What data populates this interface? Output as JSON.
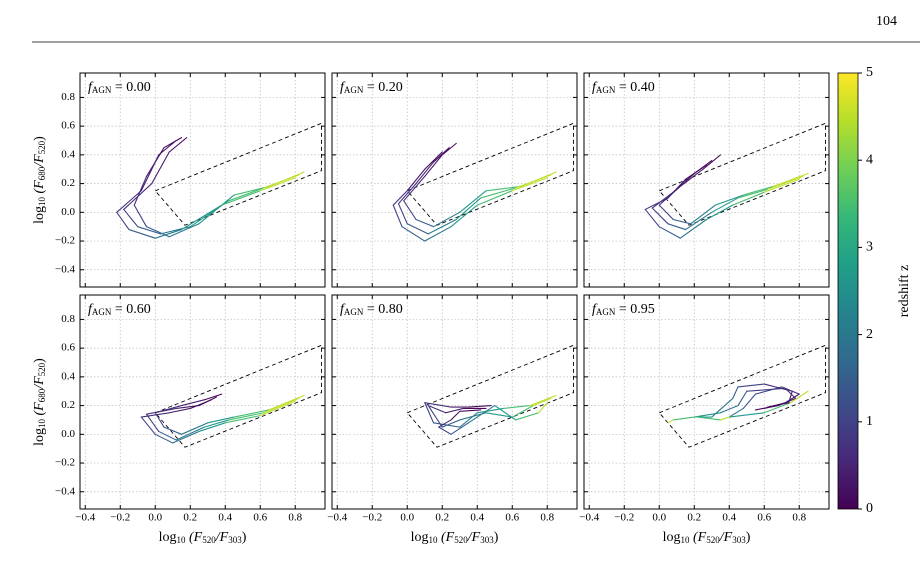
{
  "page_number": "104",
  "axes": {
    "xlabel": [
      "log",
      "10",
      " (F",
      "520",
      "/F",
      "303",
      ")"
    ],
    "ylabel": [
      "log",
      "10",
      " (F",
      "680",
      "/F",
      "520",
      ")"
    ],
    "xlim": [
      -0.43,
      0.97
    ],
    "ylim": [
      -0.52,
      0.97
    ],
    "xticks": [
      {
        "value": -0.4,
        "label": "−0.4"
      },
      {
        "value": -0.2,
        "label": "−0.2"
      },
      {
        "value": 0,
        "label": "0.0"
      },
      0.2,
      0.4,
      0.6,
      0.8
    ],
    "yticks": [
      {
        "value": -0.4,
        "label": "−0.4"
      },
      {
        "value": -0.2,
        "label": "−0.2"
      },
      {
        "value": 0,
        "label": "0.0"
      },
      0.2,
      0.4,
      0.6,
      0.8
    ],
    "grid": true,
    "region": {
      "x": [
        0,
        0.95,
        0.95,
        0.17,
        0
      ],
      "y": [
        0.15,
        0.62,
        0.29,
        -0.09,
        0.15
      ]
    },
    "z": [
      0,
      0.2,
      0.5,
      0.8,
      1.2,
      1.7,
      2.3,
      3,
      4,
      5
    ],
    "colorbar": {
      "label": "redshift z",
      "lim": [
        0,
        5
      ],
      "ticks": [
        0,
        1,
        2,
        3,
        4,
        5
      ],
      "colors": [
        "#440154",
        "#482878",
        "#3e4989",
        "#31688e",
        "#26828e",
        "#1f9e89",
        "#35b779",
        "#6ece58",
        "#b5de2b",
        "#fde725"
      ]
    }
  },
  "chart_data": [
    {
      "type": "line",
      "label": "f",
      "label_sub": "AGN",
      "label_value": " = 0.00",
      "series": [
        {
          "x": [
            0.15,
            0.05,
            -0.05,
            -0.12,
            -0.05,
            0.08,
            0.25,
            0.45,
            0.65,
            0.85
          ],
          "y": [
            0.52,
            0.45,
            0.25,
            0.05,
            -0.1,
            -0.17,
            -0.08,
            0.12,
            0.18,
            0.28
          ]
        },
        {
          "x": [
            0.18,
            0.08,
            -0.02,
            -0.18,
            -0.1,
            0.03,
            0.2,
            0.42,
            0.62,
            0.82
          ],
          "y": [
            0.52,
            0.42,
            0.2,
            0.02,
            -0.1,
            -0.15,
            -0.1,
            0.08,
            0.17,
            0.26
          ]
        },
        {
          "x": [
            0.12,
            0.02,
            -0.08,
            -0.22,
            -0.15,
            0.0,
            0.15,
            0.38,
            0.6,
            0.8
          ],
          "y": [
            0.5,
            0.4,
            0.15,
            0.0,
            -0.12,
            -0.18,
            -0.12,
            0.05,
            0.15,
            0.24
          ]
        }
      ]
    },
    {
      "type": "line",
      "label": "f",
      "label_sub": "AGN",
      "label_value": " = 0.20",
      "series": [
        {
          "x": [
            0.28,
            0.2,
            0.1,
            -0.02,
            0.05,
            0.15,
            0.3,
            0.45,
            0.65,
            0.85
          ],
          "y": [
            0.48,
            0.4,
            0.25,
            0.08,
            -0.05,
            -0.1,
            0.0,
            0.15,
            0.18,
            0.28
          ]
        },
        {
          "x": [
            0.24,
            0.15,
            0.05,
            -0.05,
            0.0,
            0.12,
            0.28,
            0.42,
            0.62,
            0.82
          ],
          "y": [
            0.45,
            0.35,
            0.2,
            0.06,
            -0.08,
            -0.15,
            -0.05,
            0.1,
            0.17,
            0.26
          ]
        },
        {
          "x": [
            0.2,
            0.1,
            0.0,
            -0.08,
            -0.03,
            0.1,
            0.25,
            0.4,
            0.6,
            0.8
          ],
          "y": [
            0.42,
            0.3,
            0.15,
            0.05,
            -0.1,
            -0.2,
            -0.1,
            0.05,
            0.15,
            0.24
          ]
        }
      ]
    },
    {
      "type": "line",
      "label": "f",
      "label_sub": "AGN",
      "label_value": " = 0.40",
      "series": [
        {
          "x": [
            0.35,
            0.25,
            0.12,
            0.0,
            0.08,
            0.18,
            0.32,
            0.48,
            0.65,
            0.85
          ],
          "y": [
            0.4,
            0.3,
            0.18,
            0.05,
            -0.05,
            -0.08,
            0.05,
            0.12,
            0.18,
            0.27
          ]
        },
        {
          "x": [
            0.3,
            0.2,
            0.08,
            -0.04,
            0.05,
            0.15,
            0.3,
            0.45,
            0.62,
            0.82
          ],
          "y": [
            0.36,
            0.27,
            0.14,
            0.03,
            -0.08,
            -0.12,
            0.0,
            0.1,
            0.16,
            0.25
          ]
        },
        {
          "x": [
            0.27,
            0.15,
            0.05,
            -0.08,
            0.0,
            0.12,
            0.27,
            0.42,
            0.6,
            0.8
          ],
          "y": [
            0.33,
            0.23,
            0.1,
            0.02,
            -0.1,
            -0.18,
            -0.05,
            0.05,
            0.14,
            0.23
          ]
        }
      ]
    },
    {
      "type": "line",
      "label": "f",
      "label_sub": "AGN",
      "label_value": " = 0.60",
      "series": [
        {
          "x": [
            0.38,
            0.28,
            0.15,
            0.0,
            0.05,
            0.15,
            0.3,
            0.45,
            0.65,
            0.85
          ],
          "y": [
            0.28,
            0.24,
            0.2,
            0.15,
            0.05,
            0.0,
            0.08,
            0.12,
            0.17,
            0.27
          ]
        },
        {
          "x": [
            0.35,
            0.25,
            0.12,
            -0.05,
            0.02,
            0.12,
            0.28,
            0.42,
            0.62,
            0.82
          ],
          "y": [
            0.26,
            0.2,
            0.18,
            0.14,
            0.02,
            -0.04,
            0.05,
            0.1,
            0.15,
            0.25
          ]
        },
        {
          "x": [
            0.32,
            0.2,
            0.08,
            -0.08,
            0.0,
            0.1,
            0.25,
            0.4,
            0.6,
            0.8
          ],
          "y": [
            0.24,
            0.18,
            0.15,
            0.12,
            0.0,
            -0.06,
            0.02,
            0.08,
            0.13,
            0.23
          ]
        }
      ]
    },
    {
      "type": "line",
      "label": "f",
      "label_sub": "AGN",
      "label_value": " = 0.80",
      "series": [
        {
          "x": [
            0.48,
            0.35,
            0.25,
            0.1,
            0.15,
            0.3,
            0.4,
            0.55,
            0.7,
            0.85
          ],
          "y": [
            0.2,
            0.19,
            0.19,
            0.22,
            0.08,
            0.05,
            0.15,
            0.18,
            0.2,
            0.27
          ]
        },
        {
          "x": [
            0.45,
            0.32,
            0.22,
            0.12,
            0.2,
            0.3,
            0.45,
            0.6,
            0.72,
            0.82
          ],
          "y": [
            0.18,
            0.18,
            0.15,
            0.2,
            0.05,
            0.1,
            0.15,
            0.12,
            0.2,
            0.25
          ]
        },
        {
          "x": [
            0.42,
            0.3,
            0.25,
            0.18,
            0.25,
            0.35,
            0.5,
            0.62,
            0.75,
            0.8
          ],
          "y": [
            0.17,
            0.16,
            0.1,
            0.05,
            0.0,
            0.08,
            0.2,
            0.1,
            0.15,
            0.22
          ]
        }
      ]
    },
    {
      "type": "line",
      "label": "f",
      "label_sub": "AGN",
      "label_value": " = 0.95",
      "series": [
        {
          "x": [
            0.55,
            0.68,
            0.78,
            0.72,
            0.5,
            0.45,
            0.35,
            0.2,
            0.08,
            0.05
          ],
          "y": [
            0.17,
            0.2,
            0.25,
            0.32,
            0.3,
            0.2,
            0.15,
            0.12,
            0.1,
            0.08
          ]
        },
        {
          "x": [
            0.6,
            0.72,
            0.8,
            0.7,
            0.55,
            0.48,
            0.4,
            0.6,
            0.75,
            0.85
          ],
          "y": [
            0.18,
            0.22,
            0.28,
            0.33,
            0.28,
            0.18,
            0.12,
            0.15,
            0.22,
            0.3
          ]
        },
        {
          "x": [
            0.62,
            0.74,
            0.76,
            0.6,
            0.45,
            0.42,
            0.3,
            0.22,
            0.35,
            0.4
          ],
          "y": [
            0.19,
            0.22,
            0.3,
            0.35,
            0.33,
            0.25,
            0.12,
            0.12,
            0.1,
            0.12
          ]
        }
      ]
    }
  ]
}
